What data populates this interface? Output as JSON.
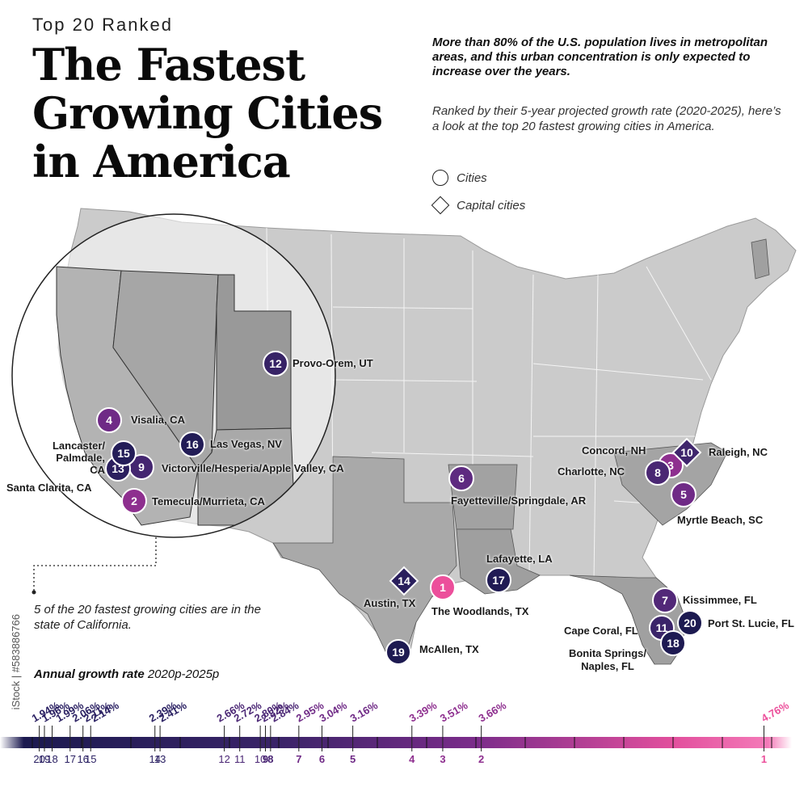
{
  "header": {
    "kicker": "Top 20 Ranked",
    "title_line1": "The Fastest",
    "title_line2": "Growing Cities",
    "title_line3": "in America"
  },
  "intro": {
    "lead": "More than 80% of the U.S. population lives in metropolitan areas, and this urban concentration is only expected to increase over the years.",
    "description": "Ranked by their 5-year projected growth rate (2020-2025), here’s a look at the top 20 fastest growing cities in America."
  },
  "legend": {
    "cities_label": "Cities",
    "capital_label": "Capital cities"
  },
  "cities": [
    {
      "rank": "1",
      "name": "The Woodlands, TX",
      "type": "city",
      "color": "#ec4f9b"
    },
    {
      "rank": "2",
      "name": "Temecula/Murrieta, CA",
      "type": "city",
      "color": "#8e2f8f"
    },
    {
      "rank": "3",
      "name": "Raleigh, NC",
      "type": "city",
      "color": "#8e2f8f"
    },
    {
      "rank": "4",
      "name": "Visalia, CA",
      "type": "city",
      "color": "#6f2a86"
    },
    {
      "rank": "5",
      "name": "Myrtle Beach, SC",
      "type": "city",
      "color": "#6f2a86"
    },
    {
      "rank": "6",
      "name": "Fayetteville/Springdale, AR",
      "type": "city",
      "color": "#5e2a80"
    },
    {
      "rank": "7",
      "name": "Kissimmee, FL",
      "type": "city",
      "color": "#522878"
    },
    {
      "rank": "8",
      "name": "Charlotte, NC",
      "type": "city",
      "color": "#4a2773"
    },
    {
      "rank": "9",
      "name": "Victorville/Hesperia/Apple Valley, CA",
      "type": "city",
      "color": "#442670"
    },
    {
      "rank": "10",
      "name": "Concord, NH",
      "type": "capital",
      "color": "#3f256c"
    },
    {
      "rank": "11",
      "name": "Cape Coral, FL",
      "type": "city",
      "color": "#3b2469"
    },
    {
      "rank": "12",
      "name": "Provo-Orem, UT",
      "type": "city",
      "color": "#372366"
    },
    {
      "rank": "13",
      "name": "Santa Clarita, CA",
      "type": "city",
      "color": "#2b1f5e"
    },
    {
      "rank": "14",
      "name": "Austin, TX",
      "type": "capital",
      "color": "#2a1f5d"
    },
    {
      "rank": "15",
      "name": "Lancaster/ Palmdale, CA",
      "type": "city",
      "color": "#241d58"
    },
    {
      "rank": "16",
      "name": "Las Vegas, NV",
      "type": "city",
      "color": "#221c56"
    },
    {
      "rank": "17",
      "name": "Lafayette, LA",
      "type": "city",
      "color": "#201b54"
    },
    {
      "rank": "18",
      "name": "Bonita Springs/ Naples, FL",
      "type": "city",
      "color": "#1e1a52"
    },
    {
      "rank": "19",
      "name": "McAllen, TX",
      "type": "city",
      "color": "#1d1a51"
    },
    {
      "rank": "20",
      "name": "Port St. Lucie, FL",
      "type": "city",
      "color": "#1c1a50"
    }
  ],
  "annotation": {
    "california_note": "5 of the 20 fastest growing cities are in the state of California."
  },
  "growth_axis": {
    "title_bold": "Annual growth rate",
    "title_rest": "2020p-2025p",
    "domain": [
      1.85,
      4.9
    ],
    "points": [
      {
        "rank": "20",
        "rate": 1.94,
        "label": "1.94%"
      },
      {
        "rank": "19",
        "rate": 1.96,
        "label": "1.96%"
      },
      {
        "rank": "18",
        "rate": 1.99,
        "label": "1.99%"
      },
      {
        "rank": "17",
        "rate": 2.06,
        "label": "2.06%"
      },
      {
        "rank": "16",
        "rate": 2.11,
        "label": "2.11%"
      },
      {
        "rank": "15",
        "rate": 2.14,
        "label": "2.14%"
      },
      {
        "rank": "14",
        "rate": 2.39,
        "label": "2.39%"
      },
      {
        "rank": "13",
        "rate": 2.41,
        "label": "2.41%"
      },
      {
        "rank": "12",
        "rate": 2.66,
        "label": "2.66%"
      },
      {
        "rank": "11",
        "rate": 2.72,
        "label": "2.72%"
      },
      {
        "rank": "10",
        "rate": 2.8,
        "label": "2.80%"
      },
      {
        "rank": "9",
        "rate": 2.82,
        "label": "2.82%"
      },
      {
        "rank": "8",
        "rate": 2.84,
        "label": "2.84%"
      },
      {
        "rank": "7",
        "rate": 2.95,
        "label": "2.95%"
      },
      {
        "rank": "6",
        "rate": 3.04,
        "label": "3.04%"
      },
      {
        "rank": "5",
        "rate": 3.16,
        "label": "3.16%"
      },
      {
        "rank": "4",
        "rate": 3.39,
        "label": "3.39%"
      },
      {
        "rank": "3",
        "rate": 3.51,
        "label": "3.51%"
      },
      {
        "rank": "2",
        "rate": 3.66,
        "label": "3.66%"
      },
      {
        "rank": "1",
        "rate": 4.76,
        "label": "4.76%"
      }
    ]
  },
  "watermark": "iStock | #583886766",
  "colors": {
    "dark": "#1c1a50",
    "mid": "#6f2a86",
    "pink": "#ec4f9b",
    "map_fill": "#c9c9c9"
  }
}
